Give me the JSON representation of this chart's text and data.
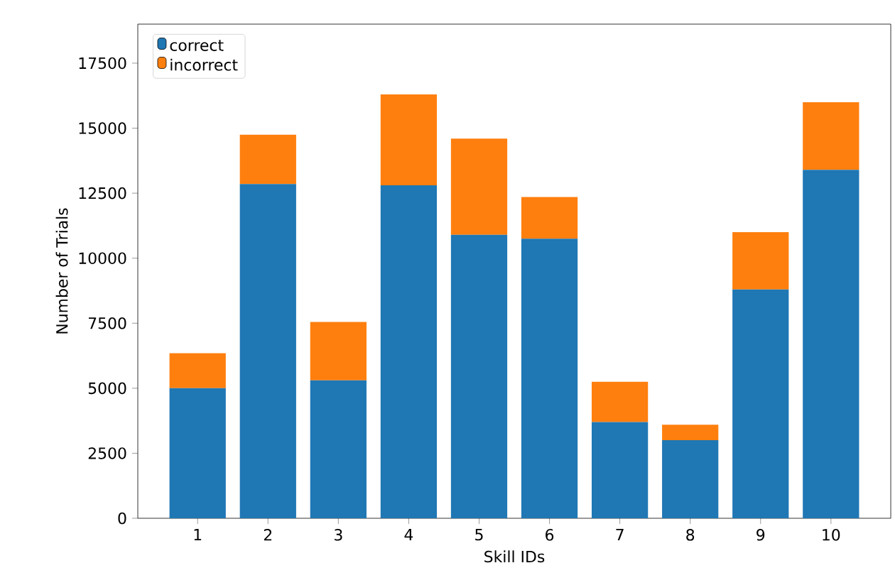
{
  "chart_data": {
    "type": "bar",
    "stacked": true,
    "xlabel": "Skill IDs",
    "ylabel": "Number of Trials",
    "categories": [
      "1",
      "2",
      "3",
      "4",
      "5",
      "6",
      "7",
      "8",
      "9",
      "10"
    ],
    "series": [
      {
        "name": "correct",
        "color": "#1f77b4",
        "values": [
          5000,
          12850,
          5300,
          12800,
          10900,
          10750,
          3700,
          3000,
          8800,
          13400
        ]
      },
      {
        "name": "incorrect",
        "color": "#ff7f0e",
        "values": [
          1350,
          1900,
          2250,
          3500,
          3700,
          1600,
          1550,
          600,
          2200,
          2600
        ]
      }
    ],
    "ylim": [
      0,
      19000
    ],
    "yticks": [
      0,
      2500,
      5000,
      7500,
      10000,
      12500,
      15000,
      17500
    ],
    "legend": "top left",
    "grid": false
  }
}
